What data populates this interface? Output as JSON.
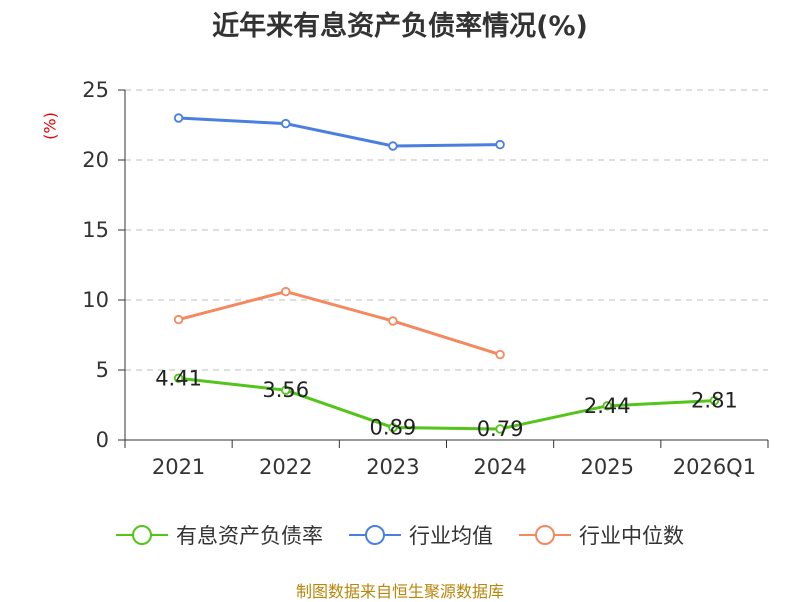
{
  "chart_data": {
    "type": "line",
    "title": "近年来有息资产负债率情况(%)",
    "ylabel": "(%)",
    "xlabel": "",
    "categories": [
      "2021",
      "2022",
      "2023",
      "2024",
      "2025",
      "2026Q1"
    ],
    "ylim": [
      0,
      25
    ],
    "yticks": [
      0,
      5,
      10,
      15,
      20,
      25
    ],
    "grid": true,
    "legend_position": "bottom",
    "series": [
      {
        "name": "有息资产负债率",
        "color": "#52c41a",
        "values": [
          4.41,
          3.56,
          0.89,
          0.79,
          2.44,
          2.81
        ],
        "labels": [
          "4.41",
          "3.56",
          "0.89",
          "0.79",
          "2.44",
          "2.81"
        ]
      },
      {
        "name": "行业均值",
        "color": "#4a7fe0",
        "values": [
          23.0,
          22.6,
          21.0,
          21.1,
          null,
          null
        ]
      },
      {
        "name": "行业中位数",
        "color": "#f4895f",
        "values": [
          8.6,
          10.6,
          8.5,
          6.1,
          null,
          null
        ]
      }
    ]
  },
  "source": "制图数据来自恒生聚源数据库"
}
